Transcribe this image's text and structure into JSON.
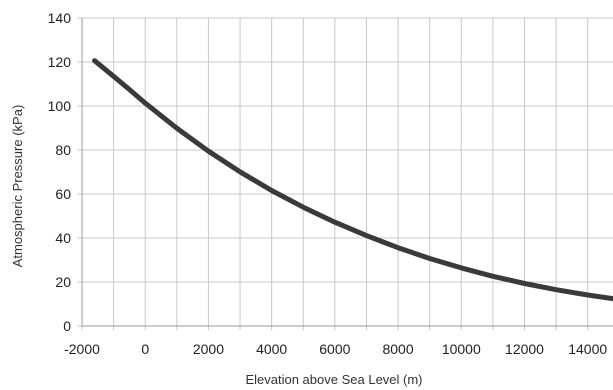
{
  "chart_data": {
    "type": "line",
    "title": "",
    "xlabel": "Elevation above Sea Level (m)",
    "ylabel": "Atmospheric Pressure (kPa)",
    "xlim": [
      -2000,
      14800
    ],
    "ylim": [
      0,
      140
    ],
    "x_ticks": [
      -2000,
      0,
      2000,
      4000,
      6000,
      8000,
      10000,
      12000,
      14000
    ],
    "x_tick_labels": [
      "-2000",
      "0",
      "2000",
      "4000",
      "6000",
      "8000",
      "10000",
      "12000",
      "14000"
    ],
    "y_ticks": [
      0,
      20,
      40,
      60,
      80,
      100,
      120,
      140
    ],
    "y_tick_labels": [
      "0",
      "20",
      "40",
      "60",
      "80",
      "100",
      "120",
      "140"
    ],
    "grid": true,
    "minor_x_grid_step": 1000,
    "legend": "none",
    "series": [
      {
        "color": "#3a3a3a",
        "x": [
          -1600,
          -1000,
          -500,
          0,
          1000,
          2000,
          3000,
          4000,
          5000,
          6000,
          7000,
          8000,
          9000,
          10000,
          11000,
          12000,
          13000,
          14000,
          14800
        ],
        "y": [
          120.6,
          113.5,
          107.5,
          101.3,
          89.9,
          79.5,
          70.1,
          61.6,
          54.0,
          47.2,
          41.1,
          35.6,
          30.7,
          26.4,
          22.6,
          19.3,
          16.5,
          14.1,
          12.4
        ]
      }
    ]
  }
}
